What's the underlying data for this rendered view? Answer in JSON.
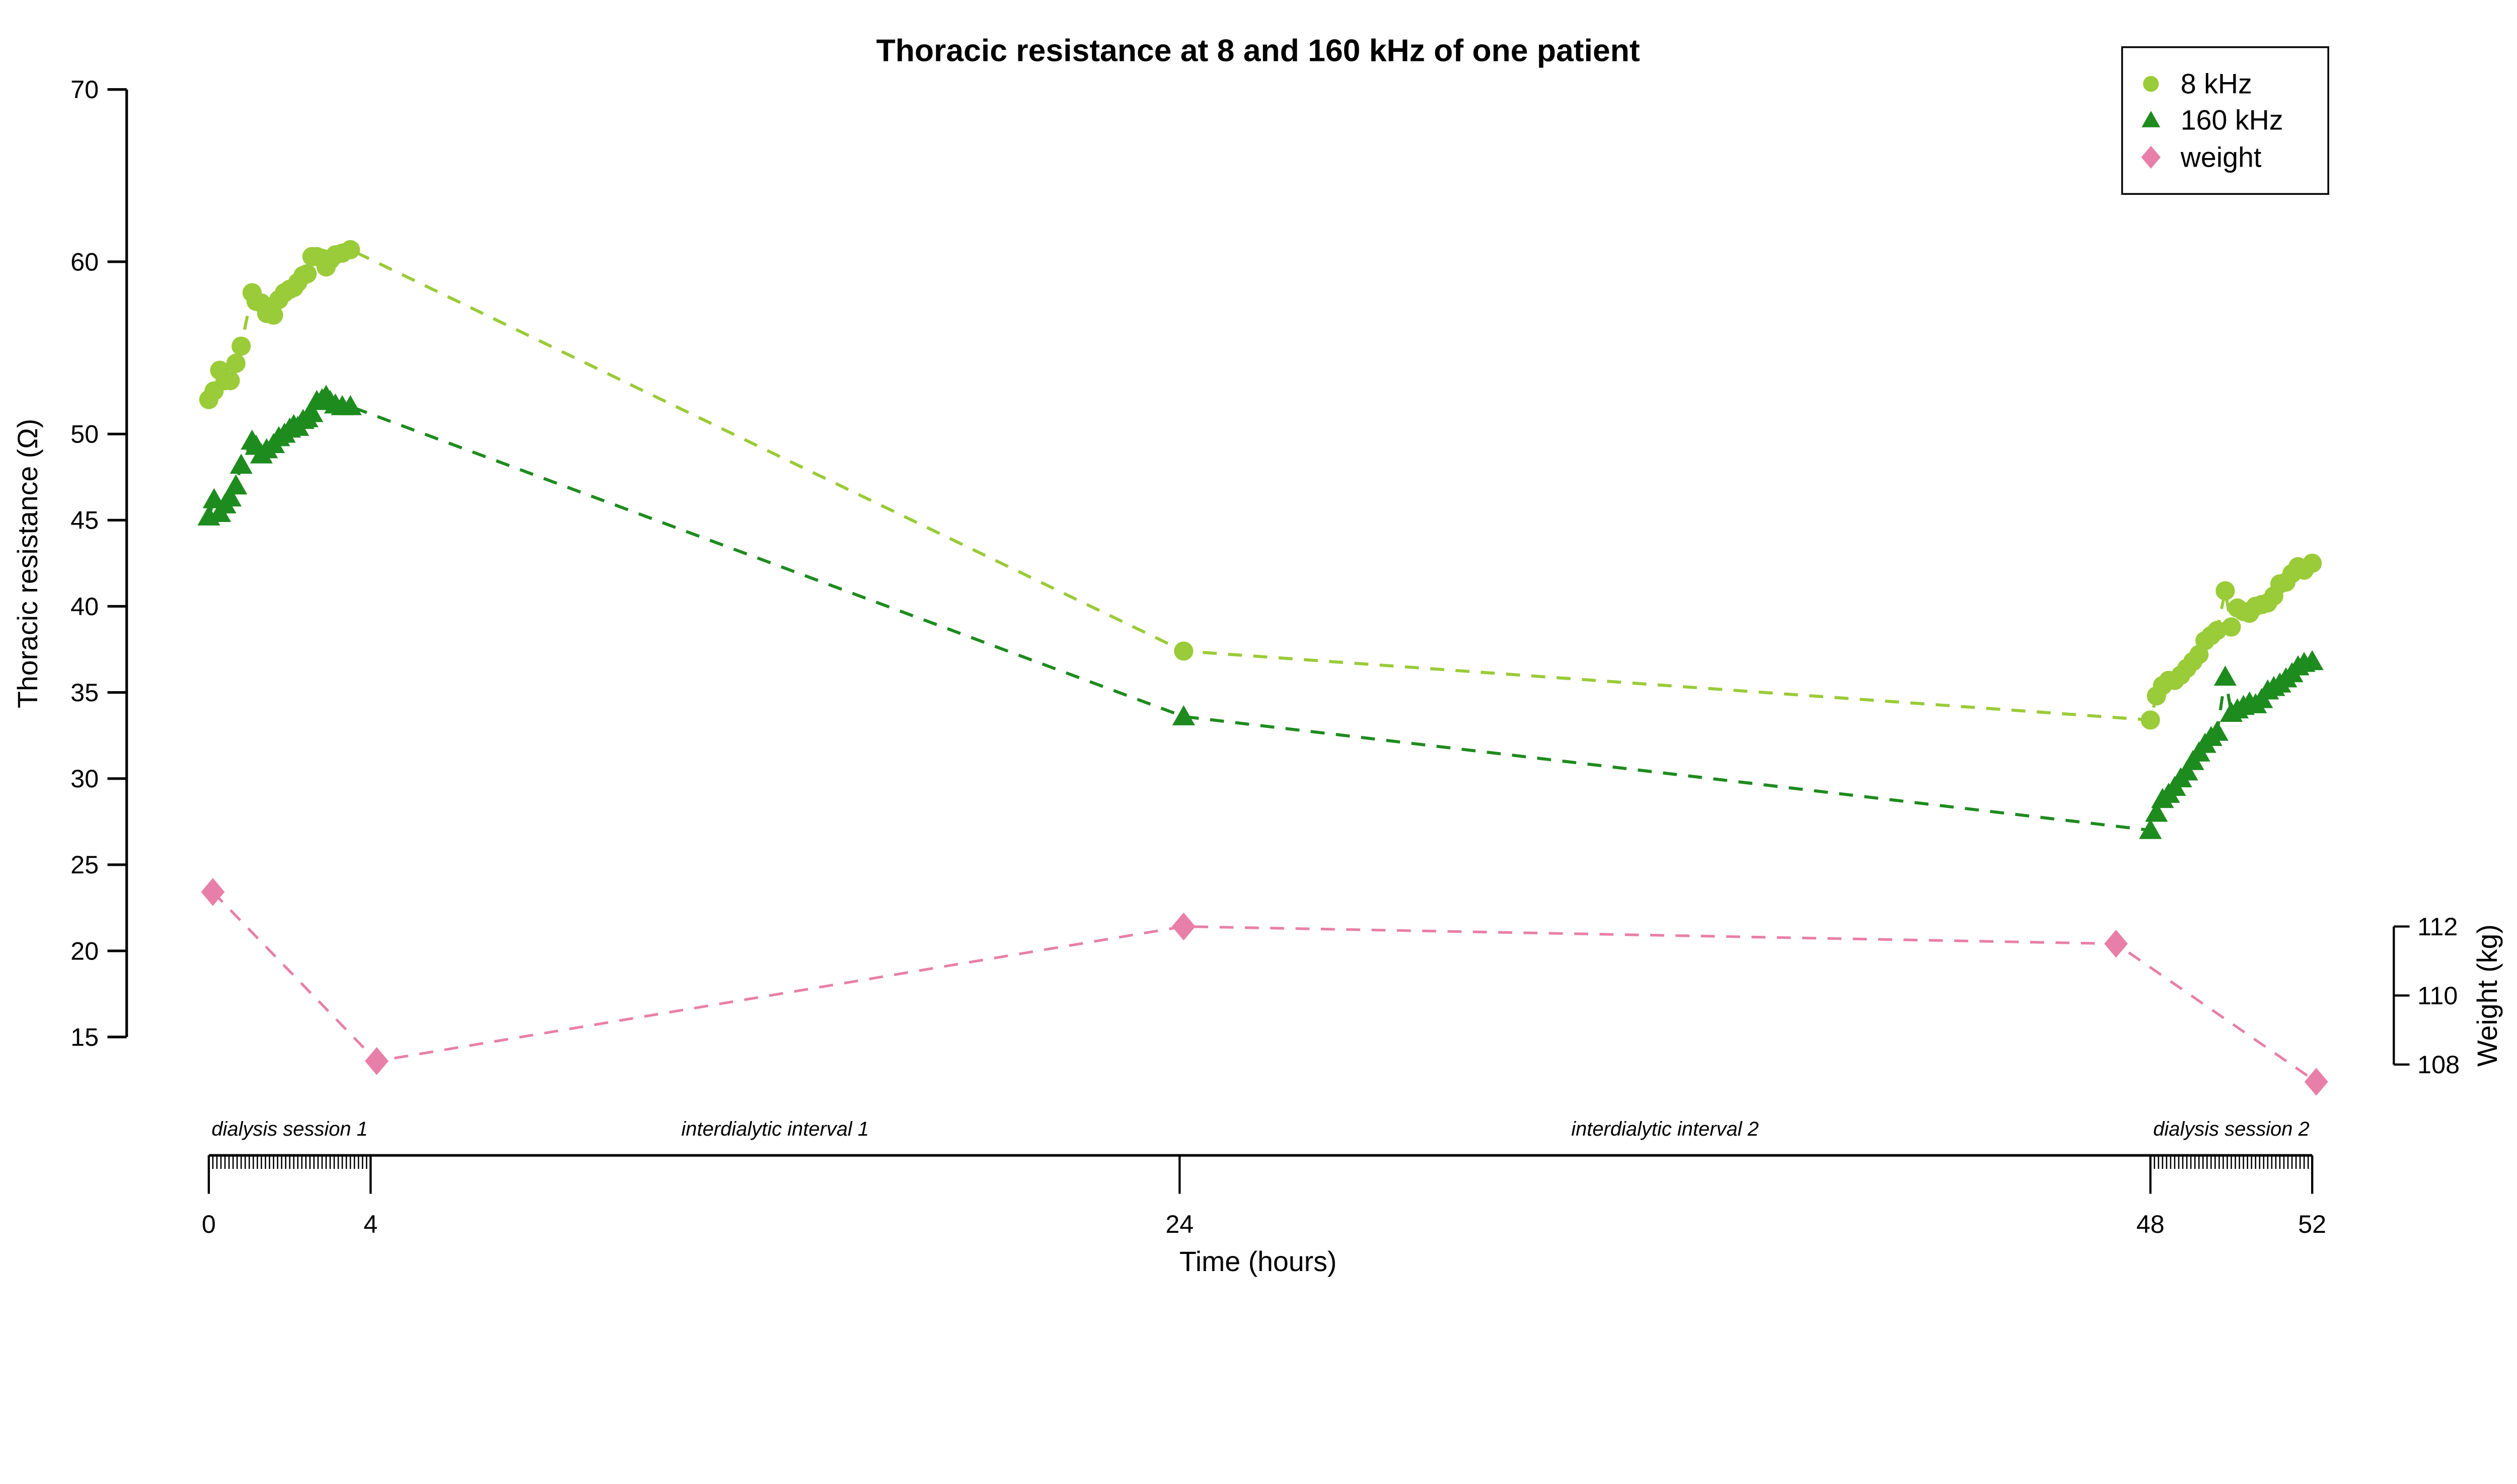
{
  "chart_data": {
    "type": "line",
    "title": "Thoracic resistance at 8 and 160 kHz of one patient",
    "xlabel": "Time (hours)",
    "ylabel_left": "Thoracic resistance (Ω)",
    "ylabel_right": "Weight (kg)",
    "x_axis": {
      "major_ticks": [
        0,
        4,
        24,
        48,
        52
      ],
      "minor_tick_ranges": [
        [
          0,
          4,
          0.1
        ],
        [
          48,
          52,
          0.1
        ]
      ],
      "range": [
        0,
        52
      ]
    },
    "y_axis_left": {
      "ticks": [
        15,
        20,
        25,
        30,
        35,
        40,
        45,
        50,
        60,
        70
      ],
      "range": [
        15,
        70
      ]
    },
    "y_axis_right": {
      "ticks": [
        108,
        110,
        112
      ],
      "range": [
        108,
        112
      ]
    },
    "grid": false,
    "legend_position": "top-right",
    "annotations": [
      {
        "text": "dialysis session 1",
        "t_center": 2,
        "style": "italic"
      },
      {
        "text": "interdialytic interval 1",
        "t_center": 14,
        "style": "italic"
      },
      {
        "text": "interdialytic interval 2",
        "t_center": 36,
        "style": "italic"
      },
      {
        "text": "dialysis session 2",
        "t_center": 50,
        "style": "italic"
      }
    ],
    "series": [
      {
        "name": "8 kHz",
        "marker": "circle",
        "color": "#9ACB38",
        "axis": "left",
        "linestyle": "dashed",
        "x": [
          0,
          0.13,
          0.27,
          0.4,
          0.53,
          0.67,
          0.8,
          1.07,
          1.17,
          1.3,
          1.43,
          1.6,
          1.73,
          1.87,
          2,
          2.1,
          2.2,
          2.33,
          2.43,
          2.55,
          2.67,
          2.8,
          2.9,
          3,
          3.13,
          3.3,
          3.5,
          24.1,
          48,
          48.15,
          48.3,
          48.45,
          48.6,
          48.75,
          48.9,
          49.05,
          49.2,
          49.35,
          49.5,
          49.65,
          49.85,
          50,
          50.15,
          50.3,
          50.45,
          50.6,
          50.75,
          50.9,
          51.05,
          51.2,
          51.35,
          51.5,
          51.65,
          51.8,
          52
        ],
        "y": [
          52,
          52.5,
          53.7,
          53.1,
          53.1,
          54.1,
          55.1,
          58.2,
          57.7,
          57.6,
          57,
          56.9,
          57.8,
          58.2,
          58.4,
          58.5,
          58.8,
          59.2,
          59.3,
          60.3,
          60.3,
          60.2,
          59.7,
          60.1,
          60.4,
          60.5,
          60.7,
          37.4,
          33.4,
          34.8,
          35.4,
          35.7,
          35.7,
          36,
          36.4,
          36.8,
          37.2,
          38,
          38.3,
          38.6,
          40.9,
          38.8,
          39.9,
          39.7,
          39.6,
          40,
          40.1,
          40.2,
          40.6,
          41.3,
          41.4,
          41.9,
          42.3,
          42.1,
          42.5
        ]
      },
      {
        "name": "160 kHz",
        "marker": "triangle",
        "color": "#1E8B1E",
        "axis": "left",
        "linestyle": "dashed",
        "x": [
          0,
          0.13,
          0.27,
          0.4,
          0.53,
          0.67,
          0.8,
          1.07,
          1.17,
          1.3,
          1.43,
          1.6,
          1.73,
          1.87,
          2,
          2.1,
          2.2,
          2.33,
          2.43,
          2.55,
          2.67,
          2.8,
          2.9,
          3,
          3.13,
          3.3,
          3.5,
          24.1,
          48,
          48.15,
          48.3,
          48.45,
          48.6,
          48.75,
          48.9,
          49.05,
          49.2,
          49.35,
          49.5,
          49.65,
          49.85,
          50,
          50.15,
          50.3,
          50.45,
          50.6,
          50.75,
          50.9,
          51.05,
          51.2,
          51.35,
          51.5,
          51.65,
          51.8,
          52
        ],
        "y": [
          45.2,
          46.2,
          45.4,
          45.9,
          46.3,
          47,
          48.2,
          49.6,
          49.3,
          48.8,
          49.1,
          49.4,
          49.8,
          50,
          50.3,
          50.5,
          50.4,
          50.8,
          50.9,
          51.2,
          51.9,
          52,
          52.2,
          51.9,
          51.7,
          51.6,
          51.6,
          33.6,
          27,
          28,
          28.8,
          29.1,
          29.5,
          30,
          30.4,
          31,
          31.5,
          32,
          32.4,
          32.7,
          35.9,
          33.8,
          34,
          34.2,
          34.4,
          34.3,
          34.6,
          35.1,
          35.3,
          35.5,
          35.8,
          36.1,
          36.5,
          36.7,
          36.8
        ]
      },
      {
        "name": "weight",
        "marker": "diamond",
        "color": "#E87FA8",
        "axis": "right",
        "linestyle": "dashed",
        "x": [
          0.1,
          4.15,
          24.1,
          47.15,
          52.1
        ],
        "y": [
          113.0,
          108.1,
          112.0,
          111.5,
          107.5
        ]
      }
    ],
    "legend": {
      "entries": [
        {
          "label": "8 kHz",
          "marker": "circle",
          "color": "#9ACB38"
        },
        {
          "label": "160 kHz",
          "marker": "triangle",
          "color": "#1E8B1E"
        },
        {
          "label": "weight",
          "marker": "diamond",
          "color": "#E87FA8"
        }
      ]
    }
  }
}
